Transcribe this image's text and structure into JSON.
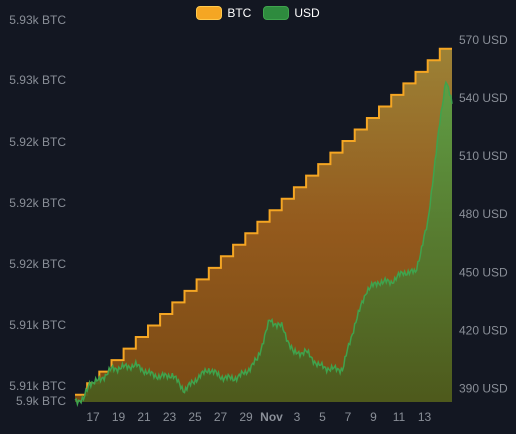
{
  "chart_data": {
    "type": "area",
    "legend": {
      "placement": "top-center"
    },
    "x_tick_labels": [
      "17",
      "19",
      "21",
      "23",
      "25",
      "27",
      "29",
      "Nov",
      "3",
      "5",
      "7",
      "9",
      "11",
      "13"
    ],
    "left_axis": {
      "unit": "BTC",
      "tick_labels": [
        "5.93k BTC",
        "5.93k BTC",
        "5.92k BTC",
        "5.92k BTC",
        "5.92k BTC",
        "5.91k BTC",
        "5.91k BTC",
        "5.9k BTC"
      ]
    },
    "right_axis": {
      "unit": "USD",
      "tick_labels": [
        "570 USD",
        "540 USD",
        "510 USD",
        "480 USD",
        "450 USD",
        "420 USD",
        "390 USD"
      ],
      "ticks": [
        570,
        540,
        510,
        480,
        450,
        420,
        390
      ],
      "range": [
        383,
        572
      ]
    },
    "series": [
      {
        "name": "BTC",
        "color": "#f5a623",
        "style": "step",
        "step_count": 31,
        "start_level": 0.02,
        "end_level": 0.965
      },
      {
        "name": "USD",
        "color": "#3fa34d",
        "x_days": [
          0,
          0.7,
          1.2,
          2,
          3,
          4,
          5,
          6,
          7,
          8,
          9,
          10,
          11,
          12,
          13,
          14,
          15,
          16,
          17,
          18,
          19,
          20,
          21,
          22,
          23,
          24,
          25,
          26,
          27,
          28,
          29,
          29.5,
          30,
          30.5,
          31
        ],
        "values": [
          384,
          384,
          393,
          394,
          400,
          401,
          402,
          398,
          396,
          397,
          389,
          395,
          400,
          396,
          395,
          398,
          405,
          425,
          422,
          408,
          409,
          402,
          400,
          400,
          423,
          441,
          445,
          445,
          450,
          450,
          475,
          502,
          527,
          550,
          537
        ]
      }
    ]
  }
}
